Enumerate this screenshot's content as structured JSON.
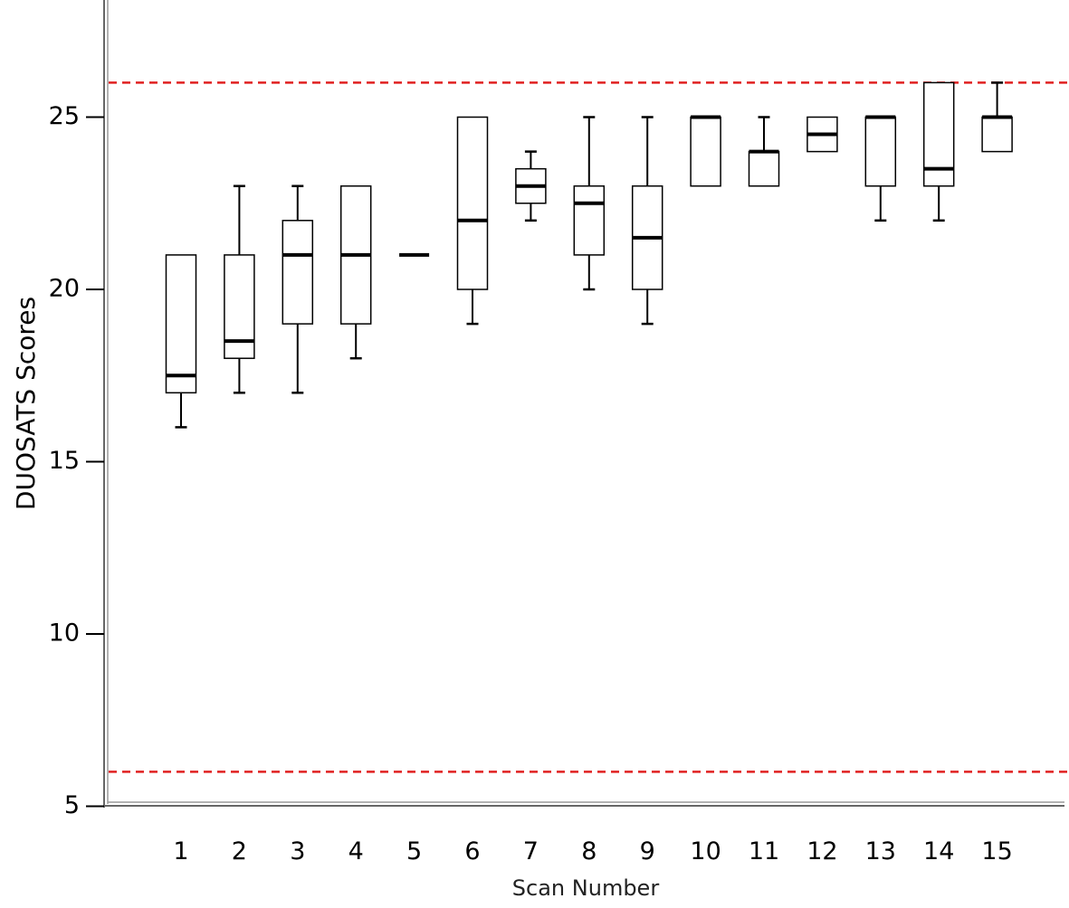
{
  "chart_data": {
    "type": "boxplot",
    "title": "",
    "xlabel": "Scan Number",
    "ylabel": "DUOSATS Scores",
    "ylim": [
      5,
      28
    ],
    "yticks": [
      5,
      10,
      15,
      20,
      25
    ],
    "categories": [
      "1",
      "2",
      "3",
      "4",
      "5",
      "6",
      "7",
      "8",
      "9",
      "10",
      "11",
      "12",
      "13",
      "14",
      "15"
    ],
    "boxes": [
      {
        "min": 16,
        "q1": 17,
        "median": 17.5,
        "q3": 21,
        "max": 21
      },
      {
        "min": 17,
        "q1": 18,
        "median": 18.5,
        "q3": 21,
        "max": 23
      },
      {
        "min": 17,
        "q1": 19,
        "median": 21,
        "q3": 22,
        "max": 23
      },
      {
        "min": 18,
        "q1": 19,
        "median": 21,
        "q3": 23,
        "max": 23
      },
      {
        "min": 21,
        "q1": 21,
        "median": 21,
        "q3": 21,
        "max": 21
      },
      {
        "min": 19,
        "q1": 20,
        "median": 22,
        "q3": 25,
        "max": 25
      },
      {
        "min": 22,
        "q1": 22.5,
        "median": 23,
        "q3": 23.5,
        "max": 24
      },
      {
        "min": 20,
        "q1": 21,
        "median": 22.5,
        "q3": 23,
        "max": 25
      },
      {
        "min": 19,
        "q1": 20,
        "median": 21.5,
        "q3": 23,
        "max": 25
      },
      {
        "min": 23,
        "q1": 23,
        "median": 25,
        "q3": 25,
        "max": 25
      },
      {
        "min": 23,
        "q1": 23,
        "median": 24,
        "q3": 24,
        "max": 25
      },
      {
        "min": 24,
        "q1": 24,
        "median": 24.5,
        "q3": 25,
        "max": 25
      },
      {
        "min": 22,
        "q1": 23,
        "median": 25,
        "q3": 25,
        "max": 25
      },
      {
        "min": 22,
        "q1": 23,
        "median": 23.5,
        "q3": 26,
        "max": 26
      },
      {
        "min": 24,
        "q1": 24,
        "median": 25,
        "q3": 25,
        "max": 26
      }
    ],
    "reference_lines": [
      {
        "y": 26,
        "color": "#e02020",
        "style": "dashed"
      },
      {
        "y": 6,
        "color": "#e02020",
        "style": "dashed"
      }
    ],
    "grid": false,
    "colors": {
      "box_stroke": "#000000",
      "box_fill": "#ffffff",
      "axis": "#666666",
      "reference": "#e02020"
    }
  }
}
